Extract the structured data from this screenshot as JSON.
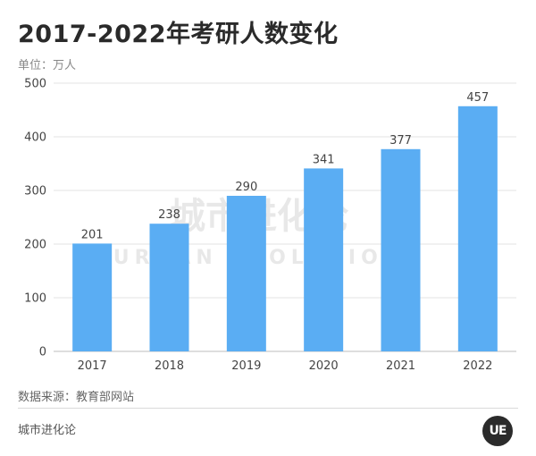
{
  "header": {
    "title": "2017-2022年考研人数变化",
    "unit": "单位：万人"
  },
  "chart_data": {
    "type": "bar",
    "categories": [
      "2017",
      "2018",
      "2019",
      "2020",
      "2021",
      "2022"
    ],
    "values": [
      201,
      238,
      290,
      341,
      377,
      457
    ],
    "title": "2017-2022年考研人数变化",
    "xlabel": "",
    "ylabel": "",
    "ylim": [
      0,
      500
    ],
    "yticks": [
      0,
      100,
      200,
      300,
      400,
      500
    ],
    "grid": true,
    "bar_color": "#5aadf3"
  },
  "watermark": {
    "cn": "城市进化论",
    "en": "URBAN EVOLUTION"
  },
  "footer": {
    "source": "数据来源：教育部网站",
    "brand": "城市进化论",
    "logo_text": "UE"
  }
}
